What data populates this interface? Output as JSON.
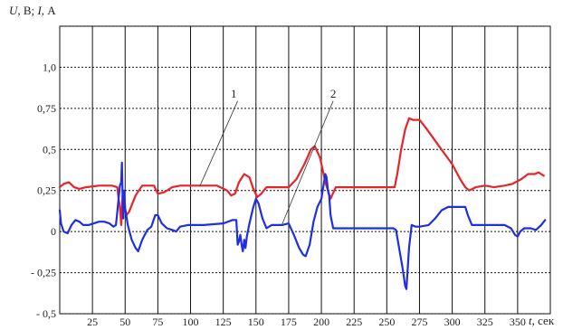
{
  "chart_data": {
    "type": "line",
    "y_axis_title": {
      "u": "U",
      "u_unit": ", В; ",
      "i": "I",
      "i_unit": ", А"
    },
    "x_axis_title": {
      "t": "t",
      "unit": ", сек"
    },
    "xlim": [
      0,
      375
    ],
    "ylim": [
      -0.5,
      1.25
    ],
    "x_ticks": [
      25,
      50,
      75,
      100,
      125,
      150,
      175,
      200,
      225,
      250,
      275,
      300,
      325,
      350
    ],
    "x_tick_labels": [
      "25",
      "50",
      "75",
      "100",
      "125",
      "150",
      "175",
      "200",
      "225",
      "250",
      "275",
      "300",
      "325",
      "350"
    ],
    "x_gridlines": [
      0,
      25,
      50,
      75,
      100,
      125,
      150,
      175,
      200,
      225,
      250,
      275,
      300,
      325,
      350,
      375
    ],
    "y_ticks": [
      1.0,
      0.75,
      0.5,
      0.25,
      0,
      -0.25,
      -0.5
    ],
    "y_tick_labels": [
      "1,0",
      "0,75",
      "0,5",
      "0,25",
      "0",
      "- 0,25",
      "- 0,5"
    ],
    "y_gridlines": [
      1.25,
      1.0,
      0.75,
      0.5,
      0.25,
      0,
      -0.25,
      -0.5
    ],
    "grid": true,
    "series": [
      {
        "color": "#e8232a",
        "points": [
          [
            0,
            0.27
          ],
          [
            3,
            0.29
          ],
          [
            7,
            0.3
          ],
          [
            11,
            0.27
          ],
          [
            15,
            0.26
          ],
          [
            20,
            0.27
          ],
          [
            30,
            0.28
          ],
          [
            40,
            0.28
          ],
          [
            44,
            0.27
          ],
          [
            45,
            0.2
          ],
          [
            46,
            0.15
          ],
          [
            47,
            0.04
          ],
          [
            48,
            0.22
          ],
          [
            49,
            0.15
          ],
          [
            51,
            0.1
          ],
          [
            53,
            0.12
          ],
          [
            58,
            0.22
          ],
          [
            63,
            0.28
          ],
          [
            68,
            0.28
          ],
          [
            72,
            0.28
          ],
          [
            75,
            0.23
          ],
          [
            80,
            0.24
          ],
          [
            86,
            0.27
          ],
          [
            92,
            0.28
          ],
          [
            100,
            0.28
          ],
          [
            120,
            0.28
          ],
          [
            128,
            0.25
          ],
          [
            131,
            0.22
          ],
          [
            134,
            0.23
          ],
          [
            137,
            0.3
          ],
          [
            141,
            0.35
          ],
          [
            145,
            0.33
          ],
          [
            148,
            0.26
          ],
          [
            151,
            0.21
          ],
          [
            154,
            0.23
          ],
          [
            158,
            0.27
          ],
          [
            175,
            0.27
          ],
          [
            181,
            0.32
          ],
          [
            187,
            0.41
          ],
          [
            192,
            0.5
          ],
          [
            195,
            0.52
          ],
          [
            199,
            0.45
          ],
          [
            203,
            0.3
          ],
          [
            207,
            0.2
          ],
          [
            211,
            0.27
          ],
          [
            215,
            0.27
          ],
          [
            225,
            0.27
          ],
          [
            240,
            0.27
          ],
          [
            256,
            0.27
          ],
          [
            258,
            0.35
          ],
          [
            261,
            0.5
          ],
          [
            264,
            0.62
          ],
          [
            267,
            0.69
          ],
          [
            270,
            0.68
          ],
          [
            275,
            0.68
          ],
          [
            280,
            0.63
          ],
          [
            290,
            0.52
          ],
          [
            300,
            0.41
          ],
          [
            306,
            0.32
          ],
          [
            310,
            0.27
          ],
          [
            313,
            0.25
          ],
          [
            318,
            0.27
          ],
          [
            325,
            0.28
          ],
          [
            332,
            0.27
          ],
          [
            340,
            0.28
          ],
          [
            346,
            0.29
          ],
          [
            353,
            0.32
          ],
          [
            358,
            0.35
          ],
          [
            363,
            0.35
          ],
          [
            366,
            0.36
          ],
          [
            370,
            0.34
          ]
        ]
      },
      {
        "color": "#1f2ee0",
        "points": [
          [
            0,
            0.13
          ],
          [
            1,
            0.05
          ],
          [
            3,
            0.0
          ],
          [
            6,
            -0.01
          ],
          [
            9,
            0.04
          ],
          [
            12,
            0.07
          ],
          [
            15,
            0.06
          ],
          [
            18,
            0.04
          ],
          [
            22,
            0.04
          ],
          [
            26,
            0.05
          ],
          [
            30,
            0.06
          ],
          [
            34,
            0.06
          ],
          [
            38,
            0.05
          ],
          [
            41,
            0.03
          ],
          [
            43,
            0.04
          ],
          [
            44,
            0.12
          ],
          [
            45,
            0.2
          ],
          [
            46,
            0.28
          ],
          [
            47,
            0.3
          ],
          [
            47.5,
            0.42
          ],
          [
            48,
            0.23
          ],
          [
            48.5,
            0.08
          ],
          [
            49.2,
            0.25
          ],
          [
            50,
            0.14
          ],
          [
            52,
            0.04
          ],
          [
            55,
            -0.05
          ],
          [
            58,
            -0.1
          ],
          [
            60,
            -0.12
          ],
          [
            63,
            -0.05
          ],
          [
            67,
            0.01
          ],
          [
            70,
            0.03
          ],
          [
            73,
            0.1
          ],
          [
            75,
            0.1
          ],
          [
            78,
            0.05
          ],
          [
            82,
            0.02
          ],
          [
            86,
            0.01
          ],
          [
            89,
            0.0
          ],
          [
            92,
            0.03
          ],
          [
            98,
            0.04
          ],
          [
            110,
            0.04
          ],
          [
            125,
            0.05
          ],
          [
            132,
            0.07
          ],
          [
            135,
            0.07
          ],
          [
            136,
            -0.08
          ],
          [
            137,
            -0.06
          ],
          [
            138,
            -0.02
          ],
          [
            139,
            -0.08
          ],
          [
            140,
            -0.12
          ],
          [
            141,
            -0.05
          ],
          [
            142,
            -0.1
          ],
          [
            143,
            -0.03
          ],
          [
            145,
            0.05
          ],
          [
            148,
            0.15
          ],
          [
            150,
            0.2
          ],
          [
            152,
            0.17
          ],
          [
            155,
            0.08
          ],
          [
            158,
            0.02
          ],
          [
            162,
            0.04
          ],
          [
            170,
            0.04
          ],
          [
            175,
            0.05
          ],
          [
            179,
            -0.02
          ],
          [
            183,
            -0.1
          ],
          [
            186,
            -0.14
          ],
          [
            188,
            -0.15
          ],
          [
            191,
            -0.08
          ],
          [
            194,
            0.06
          ],
          [
            197,
            0.15
          ],
          [
            200,
            0.2
          ],
          [
            201,
            0.25
          ],
          [
            202,
            0.3
          ],
          [
            203,
            0.35
          ],
          [
            204,
            0.33
          ],
          [
            205,
            0.25
          ],
          [
            206,
            0.22
          ],
          [
            207,
            0.1
          ],
          [
            209,
            0.02
          ],
          [
            212,
            0.02
          ],
          [
            215,
            0.02
          ],
          [
            225,
            0.02
          ],
          [
            242,
            0.02
          ],
          [
            255,
            0.02
          ],
          [
            257,
            0.01
          ],
          [
            259,
            -0.08
          ],
          [
            262,
            -0.22
          ],
          [
            264,
            -0.33
          ],
          [
            265,
            -0.35
          ],
          [
            267,
            -0.1
          ],
          [
            269,
            0.04
          ],
          [
            272,
            0.03
          ],
          [
            275,
            0.03
          ],
          [
            282,
            0.04
          ],
          [
            287,
            0.08
          ],
          [
            292,
            0.13
          ],
          [
            297,
            0.15
          ],
          [
            305,
            0.15
          ],
          [
            310,
            0.15
          ],
          [
            312,
            0.1
          ],
          [
            315,
            0.04
          ],
          [
            320,
            0.04
          ],
          [
            330,
            0.04
          ],
          [
            340,
            0.04
          ],
          [
            345,
            0.02
          ],
          [
            348,
            -0.02
          ],
          [
            350,
            -0.03
          ],
          [
            352,
            0.0
          ],
          [
            355,
            0.02
          ],
          [
            360,
            0.02
          ],
          [
            364,
            0.01
          ],
          [
            368,
            0.04
          ],
          [
            371,
            0.07
          ]
        ]
      }
    ],
    "annotations": [
      {
        "text": "1",
        "x": 133,
        "y": 0.815,
        "lx1": 136,
        "ly1": 0.795,
        "lx2": 107,
        "ly2": 0.275
      },
      {
        "text": "2",
        "x": 209,
        "y": 0.815,
        "lx1": 209,
        "ly1": 0.795,
        "lx2": 170,
        "ly2": 0.045
      }
    ]
  }
}
